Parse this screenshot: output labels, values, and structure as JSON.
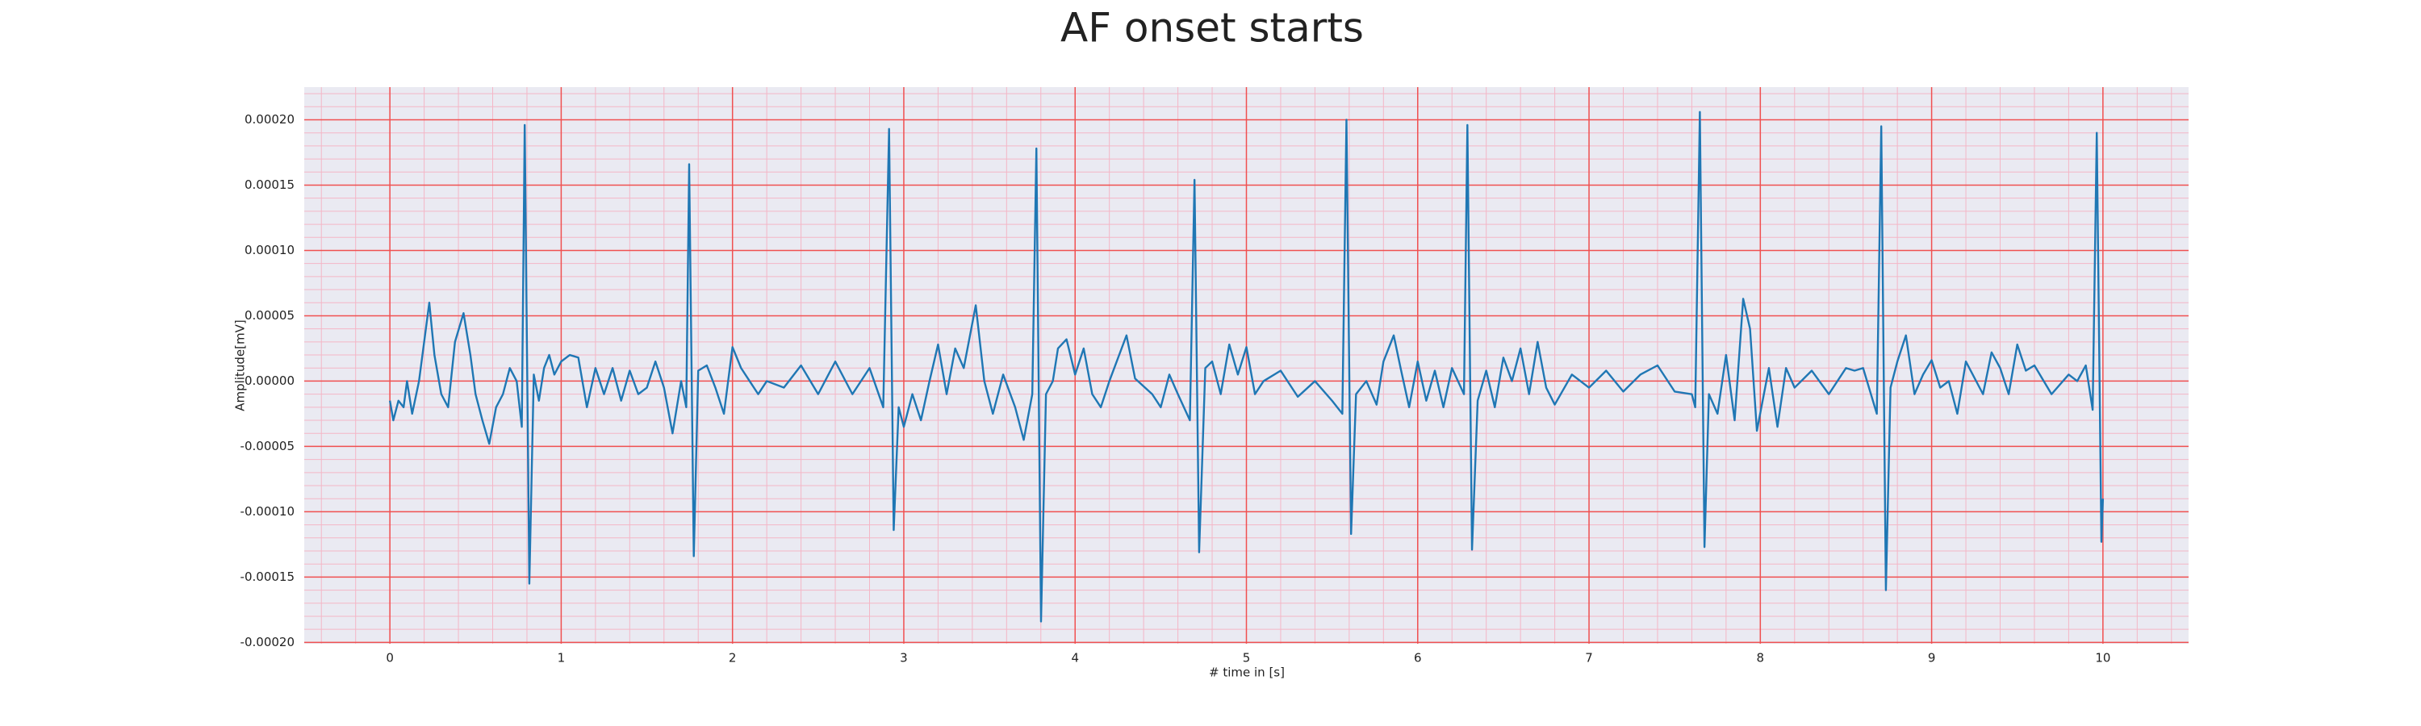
{
  "chart_data": {
    "type": "line",
    "title": "AF onset starts",
    "xlabel": "# time in [s]",
    "ylabel": "Amplitude[mV]",
    "color": "#1f77b4",
    "grid": true,
    "minor_grid": true,
    "xlim": [
      -0.5,
      10.5
    ],
    "ylim": [
      -0.000201,
      0.000225
    ],
    "xticks": [
      0,
      1,
      2,
      3,
      4,
      5,
      6,
      7,
      8,
      9,
      10
    ],
    "yticks": [
      {
        "value": -0.0002,
        "label": "-0.00020"
      },
      {
        "value": -0.00015,
        "label": "-0.00015"
      },
      {
        "value": -0.0001,
        "label": "-0.00010"
      },
      {
        "value": -5e-05,
        "label": "-0.00005"
      },
      {
        "value": 0,
        "label": "0.00000"
      },
      {
        "value": 5e-05,
        "label": "0.00005"
      },
      {
        "value": 0.0001,
        "label": "0.00010"
      },
      {
        "value": 0.00015,
        "label": "0.00015"
      },
      {
        "value": 0.0002,
        "label": "0.00020"
      }
    ],
    "x": [
      0,
      0.02,
      0.05,
      0.08,
      0.1,
      0.13,
      0.17,
      0.2,
      0.23,
      0.26,
      0.3,
      0.34,
      0.38,
      0.43,
      0.47,
      0.5,
      0.54,
      0.58,
      0.62,
      0.66,
      0.7,
      0.74,
      0.77,
      0.787,
      0.814,
      0.84,
      0.87,
      0.9,
      0.93,
      0.96,
      1.0,
      1.05,
      1.1,
      1.15,
      1.2,
      1.25,
      1.3,
      1.35,
      1.4,
      1.45,
      1.5,
      1.55,
      1.6,
      1.65,
      1.7,
      1.73,
      1.747,
      1.774,
      1.8,
      1.85,
      1.9,
      1.95,
      2.0,
      2.05,
      2.1,
      2.15,
      2.2,
      2.3,
      2.4,
      2.5,
      2.6,
      2.7,
      2.8,
      2.88,
      2.914,
      2.941,
      2.97,
      3.0,
      3.05,
      3.1,
      3.15,
      3.2,
      3.25,
      3.3,
      3.35,
      3.42,
      3.47,
      3.52,
      3.58,
      3.65,
      3.7,
      3.75,
      3.774,
      3.801,
      3.83,
      3.87,
      3.9,
      3.95,
      4.0,
      4.05,
      4.1,
      4.15,
      4.2,
      4.3,
      4.35,
      4.45,
      4.5,
      4.55,
      4.6,
      4.67,
      4.697,
      4.724,
      4.76,
      4.8,
      4.85,
      4.9,
      4.95,
      5.0,
      5.05,
      5.1,
      5.2,
      5.3,
      5.4,
      5.5,
      5.56,
      5.584,
      5.611,
      5.64,
      5.7,
      5.76,
      5.8,
      5.86,
      5.9,
      5.95,
      6.0,
      6.05,
      6.1,
      6.15,
      6.2,
      6.27,
      6.29,
      6.317,
      6.35,
      6.4,
      6.45,
      6.5,
      6.55,
      6.6,
      6.65,
      6.7,
      6.75,
      6.8,
      6.9,
      7.0,
      7.1,
      7.2,
      7.3,
      7.4,
      7.5,
      7.6,
      7.62,
      7.647,
      7.674,
      7.7,
      7.75,
      7.8,
      7.85,
      7.9,
      7.94,
      7.98,
      8.05,
      8.1,
      8.15,
      8.2,
      8.3,
      8.4,
      8.5,
      8.55,
      8.6,
      8.68,
      8.706,
      8.733,
      8.76,
      8.8,
      8.85,
      8.9,
      8.95,
      9.0,
      9.05,
      9.1,
      9.15,
      9.2,
      9.3,
      9.35,
      9.4,
      9.45,
      9.5,
      9.55,
      9.6,
      9.7,
      9.8,
      9.85,
      9.9,
      9.94,
      9.964,
      9.991,
      10.0
    ],
    "values": [
      -1.5e-05,
      -3e-05,
      -1.5e-05,
      -2e-05,
      0.0,
      -2.5e-05,
      0.0,
      3e-05,
      6e-05,
      2e-05,
      -1e-05,
      -2e-05,
      3e-05,
      5.2e-05,
      2e-05,
      -1e-05,
      -3e-05,
      -4.8e-05,
      -2e-05,
      -1e-05,
      1e-05,
      0.0,
      -3.5e-05,
      0.000196,
      -0.000155,
      5e-06,
      -1.5e-05,
      1e-05,
      2e-05,
      5e-06,
      1.5e-05,
      2e-05,
      1.8e-05,
      -2e-05,
      1e-05,
      -1e-05,
      1e-05,
      -1.5e-05,
      8e-06,
      -1e-05,
      -5e-06,
      1.5e-05,
      -5e-06,
      -4e-05,
      0.0,
      -2e-05,
      0.000166,
      -0.000134,
      8e-06,
      1.2e-05,
      -5e-06,
      -2.5e-05,
      2.6e-05,
      1e-05,
      0.0,
      -1e-05,
      0.0,
      -5e-06,
      1.2e-05,
      -1e-05,
      1.5e-05,
      -1e-05,
      1e-05,
      -2e-05,
      0.000193,
      -0.000114,
      -2e-05,
      -3.5e-05,
      -1e-05,
      -3e-05,
      0.0,
      2.8e-05,
      -1e-05,
      2.5e-05,
      1e-05,
      5.8e-05,
      0.0,
      -2.5e-05,
      5e-06,
      -2e-05,
      -4.5e-05,
      -1e-05,
      0.000178,
      -0.000184,
      -1e-05,
      0.0,
      2.5e-05,
      3.2e-05,
      5e-06,
      2.5e-05,
      -1e-05,
      -2e-05,
      0.0,
      3.5e-05,
      2e-06,
      -1e-05,
      -2e-05,
      5e-06,
      -1e-05,
      -3e-05,
      0.000154,
      -0.000131,
      1e-05,
      1.5e-05,
      -1e-05,
      2.8e-05,
      5e-06,
      2.6e-05,
      -1e-05,
      0.0,
      8e-06,
      -1.2e-05,
      0.0,
      -1.5e-05,
      -2.5e-05,
      0.0002,
      -0.000117,
      -1e-05,
      0.0,
      -1.8e-05,
      1.5e-05,
      3.5e-05,
      1e-05,
      -2e-05,
      1.5e-05,
      -1.5e-05,
      8e-06,
      -2e-05,
      1e-05,
      -1e-05,
      0.000196,
      -0.000129,
      -1.5e-05,
      8e-06,
      -2e-05,
      1.8e-05,
      0.0,
      2.5e-05,
      -1e-05,
      3e-05,
      -5e-06,
      -1.8e-05,
      5e-06,
      -5e-06,
      8e-06,
      -8e-06,
      5e-06,
      1.2e-05,
      -8e-06,
      -1e-05,
      -2e-05,
      0.000206,
      -0.000127,
      -1e-05,
      -2.5e-05,
      2e-05,
      -3e-05,
      6.3e-05,
      4e-05,
      -3.8e-05,
      1e-05,
      -3.5e-05,
      1e-05,
      -5e-06,
      8e-06,
      -1e-05,
      1e-05,
      8e-06,
      1e-05,
      -2.5e-05,
      0.000195,
      -0.00016,
      -5e-06,
      1.5e-05,
      3.5e-05,
      -1e-05,
      5e-06,
      1.6e-05,
      -5e-06,
      0.0,
      -2.5e-05,
      1.5e-05,
      -1e-05,
      2.2e-05,
      1e-05,
      -1e-05,
      2.8e-05,
      8e-06,
      1.2e-05,
      -1e-05,
      5e-06,
      0.0,
      1.2e-05,
      -2.2e-05,
      0.00019,
      -0.000123,
      -9e-05
    ]
  }
}
